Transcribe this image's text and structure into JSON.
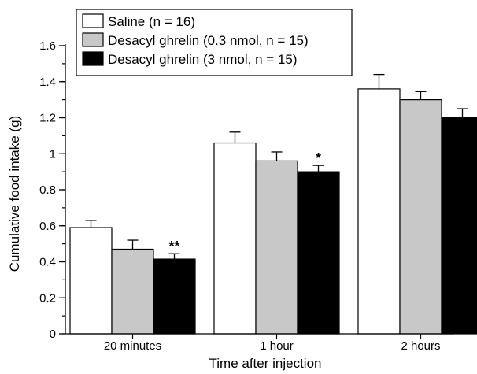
{
  "chart_data": {
    "type": "bar",
    "title": "",
    "xlabel": "Time after injection",
    "ylabel": "Cumulative food intake (g)",
    "ylim": [
      0,
      1.6
    ],
    "yticks": [
      "0",
      "0.2",
      "0.4",
      "0.6",
      "0.8",
      "1",
      "1.2",
      "1.4",
      "1.6"
    ],
    "y_minor_step": 0.1,
    "grid": false,
    "legend_position": "top-left",
    "categories": [
      "20 minutes",
      "1 hour",
      "2 hours"
    ],
    "series": [
      {
        "name": "Saline (n = 16)",
        "color": "#ffffff",
        "values": [
          0.59,
          1.06,
          1.36
        ],
        "errors": [
          0.04,
          0.06,
          0.08
        ],
        "significance": [
          "",
          "",
          ""
        ]
      },
      {
        "name": "Desacyl ghrelin (0.3 nmol, n = 15)",
        "color": "#c8c8c8",
        "values": [
          0.47,
          0.96,
          1.3
        ],
        "errors": [
          0.05,
          0.05,
          0.045
        ],
        "significance": [
          "",
          "",
          ""
        ]
      },
      {
        "name": "Desacyl ghrelin (3 nmol, n = 15)",
        "color": "#000000",
        "values": [
          0.415,
          0.9,
          1.2
        ],
        "errors": [
          0.03,
          0.035,
          0.05
        ],
        "significance": [
          "**",
          "*",
          ""
        ]
      }
    ]
  }
}
